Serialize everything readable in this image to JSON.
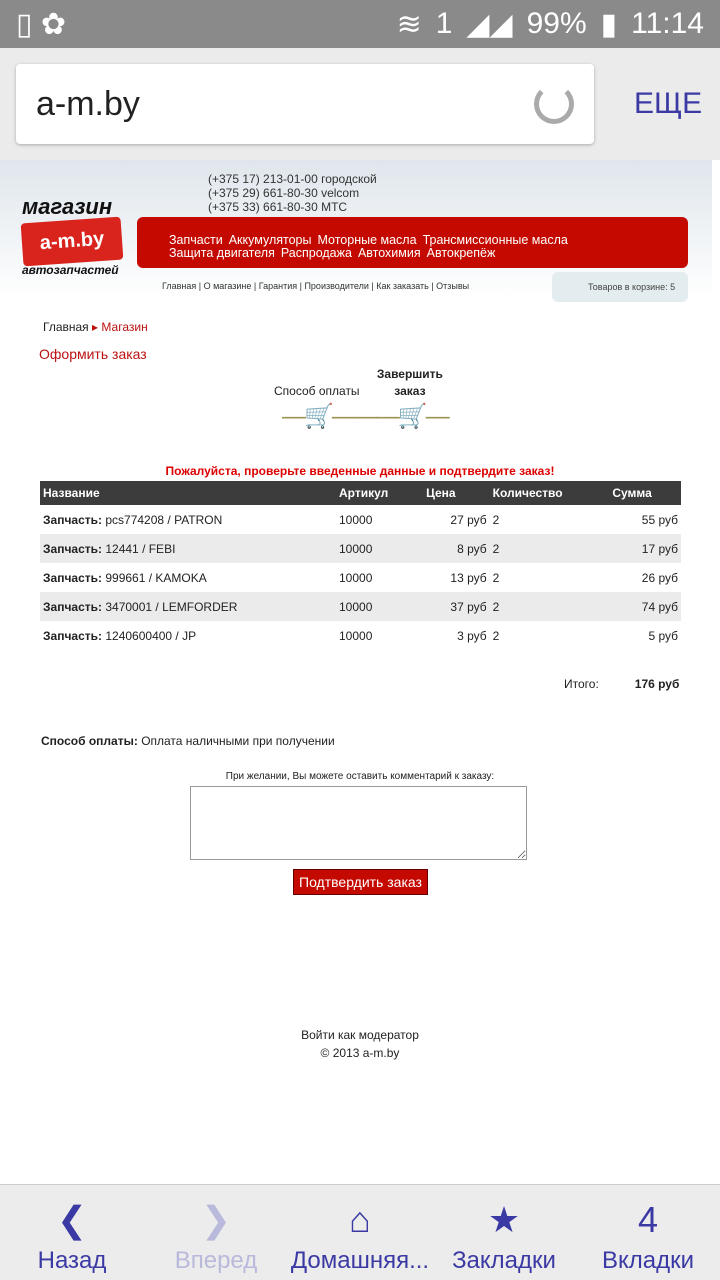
{
  "status": {
    "battery": "99%",
    "time": "11:14",
    "sim": "1"
  },
  "browser": {
    "url": "a-m.by",
    "more": "ЕЩЕ"
  },
  "site": {
    "logo": {
      "top": "магазин",
      "brand": "a-m.by",
      "bottom": "автозапчастей"
    },
    "phones": [
      "(+375 17) 213-01-00 городской",
      "(+375 29) 661-80-30 velcom",
      "(+375 33) 661-80-30 МТС"
    ],
    "menu": [
      "Запчасти",
      "Аккумуляторы",
      "Моторные масла",
      "Трансмиссионные масла",
      "Защита двигателя",
      "Распродажа",
      "Автохимия",
      "Автокрепёж"
    ],
    "topnav": "Главная | О магазине | Гарантия | Производители | Как заказать | Отзывы",
    "cart": "Товаров в корзине: 5"
  },
  "breadcrumb": [
    "Главная",
    "Магазин"
  ],
  "title": "Оформить заказ",
  "steps": [
    "Способ оплаты",
    "Завершить заказ"
  ],
  "warning": "Пожалуйста, проверьте введенные данные и подтвердите заказ!",
  "table": {
    "headers": [
      "Название",
      "Артикул",
      "Цена",
      "Количество",
      "Сумма"
    ],
    "rows": [
      [
        "Запчасть:",
        "pcs774208 / PATRON",
        "10000",
        "27 руб",
        "2",
        "55 руб"
      ],
      [
        "Запчасть:",
        "12441 / FEBI",
        "10000",
        "8 руб",
        "2",
        "17 руб"
      ],
      [
        "Запчасть:",
        "999661 / KAMOKA",
        "10000",
        "13 руб",
        "2",
        "26 руб"
      ],
      [
        "Запчасть:",
        "3470001 / LEMFORDER",
        "10000",
        "37 руб",
        "2",
        "74 руб"
      ],
      [
        "Запчасть:",
        "1240600400 / JP",
        "10000",
        "3 руб",
        "2",
        "5 руб"
      ]
    ]
  },
  "total": {
    "label": "Итого:",
    "value": "176 руб"
  },
  "payment": {
    "label": "Способ оплаты:",
    "value": "Оплата наличными при получении"
  },
  "comment_label": "При желании, Вы можете оставить комментарий к заказу:",
  "confirm": "Подтвердить заказ",
  "footer": {
    "login": "Войти как модератор",
    "copyright": "© 2013 a-m.by"
  },
  "nav": {
    "back": "Назад",
    "forward": "Вперед",
    "home": "Домашняя...",
    "bookmarks": "Закладки",
    "tabs": "Вкладки",
    "tab_count": "4"
  }
}
